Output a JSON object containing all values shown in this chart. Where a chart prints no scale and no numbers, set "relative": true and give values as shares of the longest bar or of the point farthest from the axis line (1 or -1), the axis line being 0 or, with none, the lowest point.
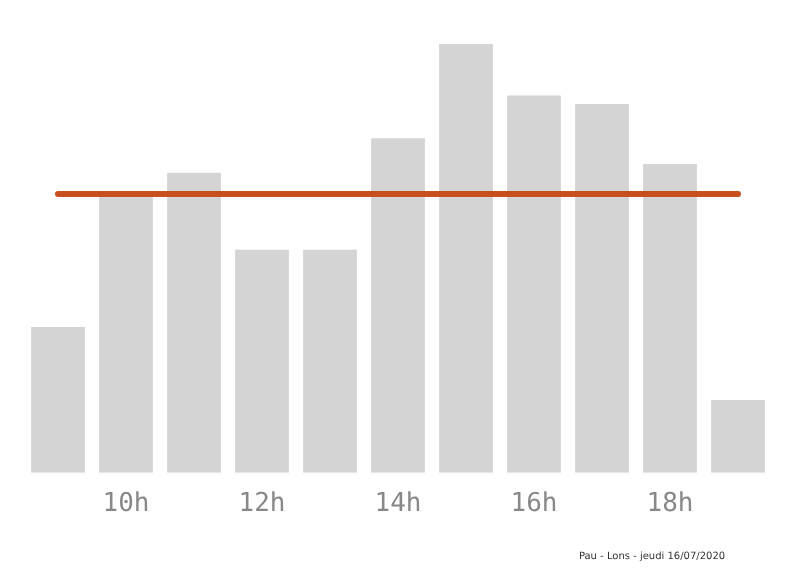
{
  "chart_data": {
    "type": "bar",
    "relative": true,
    "categories": [
      null,
      "10h",
      null,
      "12h",
      null,
      "14h",
      null,
      "16h",
      null,
      "18h",
      null
    ],
    "values": [
      0.34,
      0.65,
      0.7,
      0.52,
      0.52,
      0.78,
      1,
      0.88,
      0.86,
      0.72,
      0.17
    ],
    "color": "#d4d4d4",
    "ref_lines": [
      {
        "axis": "y",
        "value": 0.65,
        "color": "#c8501e",
        "line_style": "solid"
      }
    ],
    "annotations": [
      "Pau - Lons - jeudi 16/07/2020"
    ],
    "grid": false,
    "legend": false
  }
}
